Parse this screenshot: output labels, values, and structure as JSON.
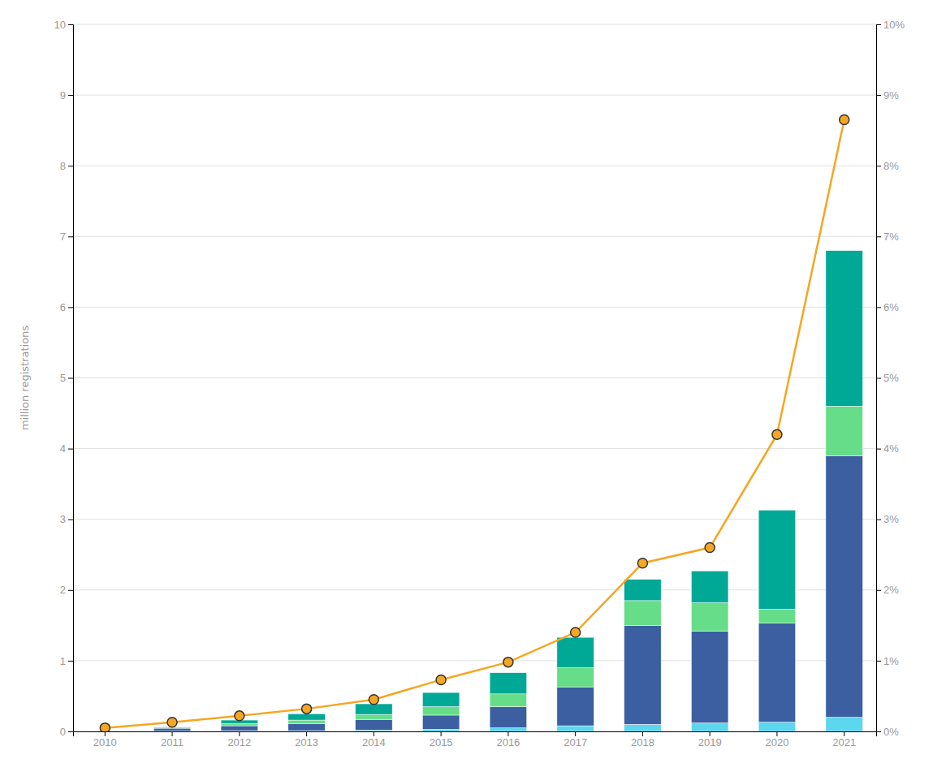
{
  "chart_data": {
    "type": "bar",
    "categories": [
      "2010",
      "2011",
      "2012",
      "2013",
      "2014",
      "2015",
      "2016",
      "2017",
      "2018",
      "2019",
      "2020",
      "2021"
    ],
    "series": [
      {
        "type": "bar",
        "color": "#5DD6F0",
        "values": [
          0.003,
          0.005,
          0.01,
          0.01,
          0.02,
          0.03,
          0.05,
          0.08,
          0.1,
          0.12,
          0.13,
          0.2
        ]
      },
      {
        "type": "bar",
        "color": "#3B5FA0",
        "values": [
          0.003,
          0.04,
          0.07,
          0.1,
          0.15,
          0.2,
          0.3,
          0.55,
          1.4,
          1.3,
          1.4,
          3.7
        ]
      },
      {
        "type": "bar",
        "color": "#66DD88",
        "values": [
          0.001,
          0.005,
          0.03,
          0.05,
          0.07,
          0.12,
          0.18,
          0.27,
          0.35,
          0.4,
          0.2,
          0.7
        ]
      },
      {
        "type": "bar",
        "color": "#00A896",
        "values": [
          0.001,
          0.01,
          0.05,
          0.09,
          0.15,
          0.2,
          0.3,
          0.43,
          0.3,
          0.45,
          1.4,
          2.2
        ]
      },
      {
        "type": "line",
        "color": "#F5A623",
        "marker": "circle",
        "values": [
          0.05,
          0.13,
          0.22,
          0.32,
          0.45,
          0.73,
          0.98,
          1.4,
          2.38,
          2.6,
          4.2,
          8.65
        ]
      }
    ],
    "stacked": true,
    "ylabel": "million registrations",
    "ylim": [
      0,
      10
    ],
    "yticks": [
      0,
      1,
      2,
      3,
      4,
      5,
      6,
      7,
      8,
      9,
      10
    ],
    "y2lim": [
      0,
      10
    ],
    "y2ticks": [
      {
        "value": 0,
        "label": "0%"
      },
      {
        "value": 1,
        "label": "1%"
      },
      {
        "value": 2,
        "label": "2%"
      },
      {
        "value": 3,
        "label": "3%"
      },
      {
        "value": 4,
        "label": "4%"
      },
      {
        "value": 5,
        "label": "5%"
      },
      {
        "value": 6,
        "label": "6%"
      },
      {
        "value": 7,
        "label": "7%"
      },
      {
        "value": 8,
        "label": "8%"
      },
      {
        "value": 9,
        "label": "9%"
      },
      {
        "value": 10,
        "label": "10%"
      }
    ],
    "grid": true
  }
}
